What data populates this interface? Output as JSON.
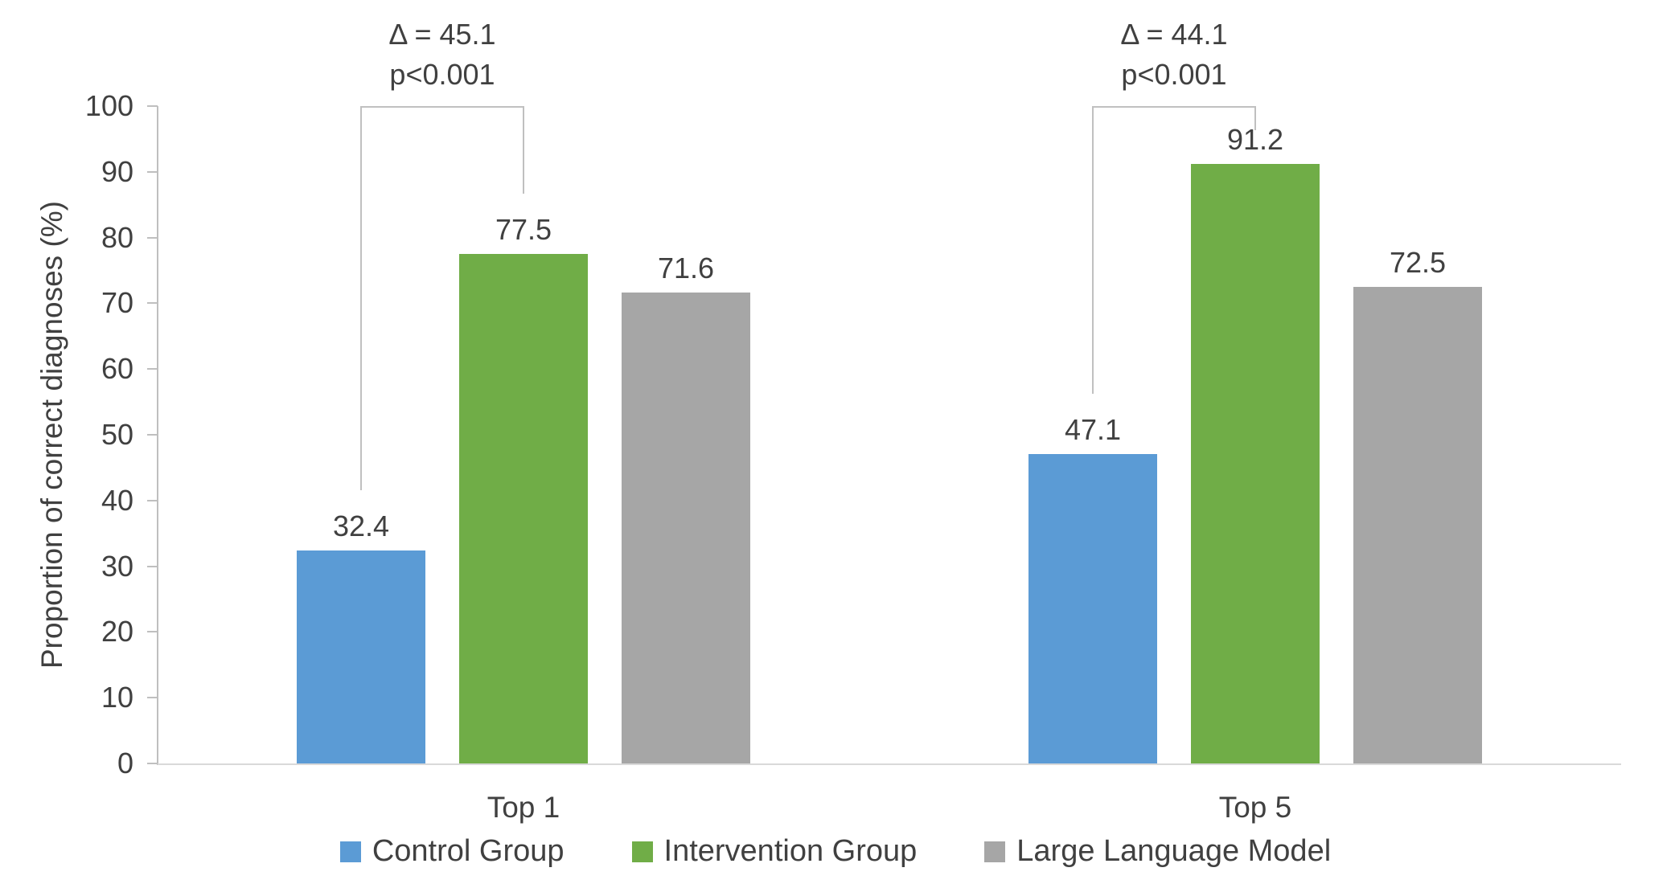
{
  "chart_data": {
    "type": "bar",
    "title": "",
    "categories": [
      "Top 1",
      "Top 5"
    ],
    "series": [
      {
        "name": "Control Group",
        "color": "#5B9BD5",
        "values": [
          32.4,
          47.1
        ]
      },
      {
        "name": "Intervention Group",
        "color": "#70AD47",
        "values": [
          77.5,
          91.2
        ]
      },
      {
        "name": "Large Language Model",
        "color": "#A6A6A6",
        "values": [
          71.6,
          72.5
        ]
      }
    ],
    "xlabel": "",
    "ylabel": "Proportion of correct diagnoses (%)",
    "ylim": [
      0,
      100
    ],
    "yticks": [
      0,
      10,
      20,
      30,
      40,
      50,
      60,
      70,
      80,
      90,
      100
    ],
    "grid": false,
    "legend_position": "bottom",
    "value_labels": true,
    "annotations": [
      {
        "group": "Top 1",
        "from_series": "Control Group",
        "to_series": "Intervention Group",
        "delta": 45.1,
        "p_value": "p<0.001",
        "lines": [
          "Δ = 45.1",
          "p<0.001"
        ]
      },
      {
        "group": "Top 5",
        "from_series": "Control Group",
        "to_series": "Intervention Group",
        "delta": 44.1,
        "p_value": "p<0.001",
        "lines": [
          "Δ = 44.1",
          "p<0.001"
        ]
      }
    ]
  },
  "colors": {
    "axis_line": "#BFBFBF",
    "baseline": "#D9D9D9",
    "bracket": "#C0C0C0",
    "text": "#404040",
    "background": "#FFFFFF"
  }
}
